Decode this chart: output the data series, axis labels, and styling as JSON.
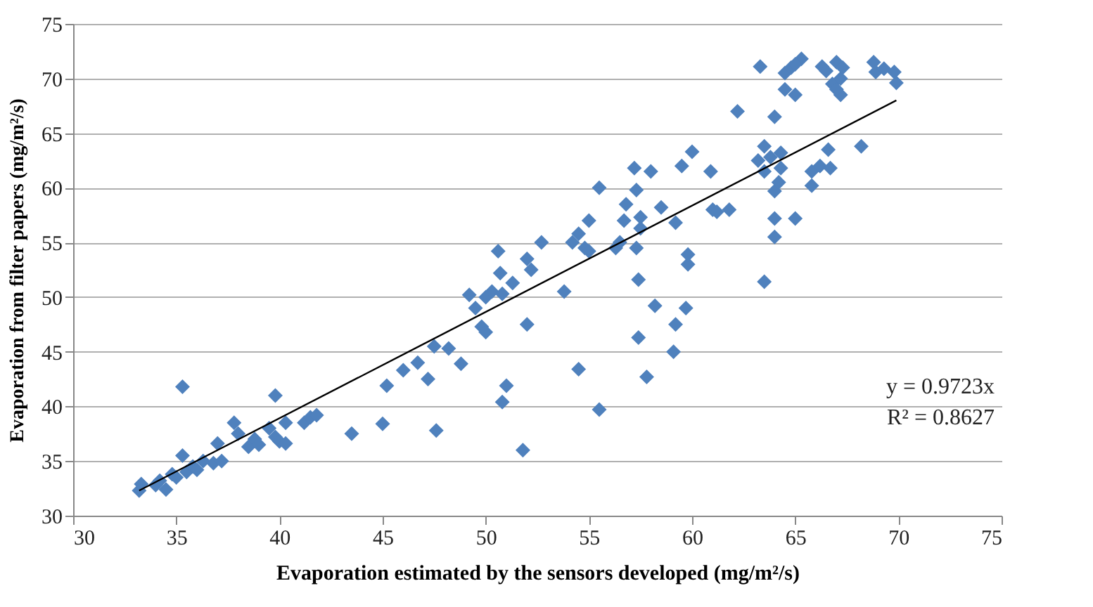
{
  "chart_data": {
    "type": "scatter",
    "xlabel": "Evaporation estimated by the sensors developed (mg/m²/s)",
    "ylabel": "Evaporation from filter papers (mg/m²/s)",
    "xlim": [
      30,
      75
    ],
    "xticks": [
      30,
      35,
      40,
      45,
      50,
      55,
      60,
      65,
      70,
      75
    ],
    "ylim": [
      30,
      75
    ],
    "yticks": [
      30,
      35,
      40,
      45,
      50,
      55,
      60,
      65,
      70,
      75
    ],
    "grid": "y",
    "annotations": [
      "y = 0.9723x",
      "R² = 0.8627"
    ],
    "series": [
      {
        "color": "#4f81bd",
        "marker": "diamond",
        "x": [
          33.2,
          33.3,
          34.0,
          34.2,
          34.5,
          34.8,
          35.0,
          35.3,
          35.3,
          35.5,
          35.8,
          36.0,
          36.3,
          36.8,
          37.0,
          37.2,
          37.8,
          38.0,
          38.5,
          38.8,
          39.0,
          39.5,
          39.8,
          39.8,
          40.0,
          40.3,
          40.3,
          41.2,
          41.5,
          41.8,
          43.5,
          45.0,
          45.2,
          46.0,
          46.7,
          47.2,
          47.5,
          47.6,
          48.2,
          48.8,
          49.2,
          49.5,
          49.8,
          50.0,
          50.0,
          50.3,
          50.6,
          50.7,
          50.8,
          51.0,
          50.8,
          51.3,
          52.0,
          51.8,
          52.0,
          52.2,
          52.7,
          53.8,
          54.2,
          54.5,
          54.5,
          54.8,
          55.0,
          55.0,
          55.5,
          55.5,
          56.3,
          56.5,
          56.7,
          56.8,
          57.2,
          57.3,
          57.3,
          57.4,
          57.4,
          57.5,
          57.5,
          57.8,
          58.0,
          58.2,
          58.5,
          59.1,
          59.2,
          59.2,
          59.5,
          59.7,
          59.8,
          59.8,
          60.0,
          60.9,
          61.0,
          61.2,
          61.8,
          62.2,
          63.2,
          63.3,
          63.5,
          63.5,
          63.5,
          63.8,
          64.0,
          64.0,
          64.0,
          64.0,
          64.2,
          64.3,
          64.3,
          64.5,
          64.5,
          64.8,
          65.0,
          65.0,
          65.3,
          65.0,
          65.8,
          65.8,
          66.2,
          66.3,
          66.5,
          66.6,
          66.7,
          66.8,
          67.0,
          67.2,
          67.2,
          67.3,
          68.2,
          68.8,
          68.9,
          69.3,
          69.8,
          69.9,
          67.0
        ],
        "values": [
          32.3,
          32.9,
          32.8,
          33.2,
          32.4,
          33.8,
          33.5,
          35.5,
          41.8,
          34.0,
          34.5,
          34.2,
          35.0,
          34.8,
          36.6,
          35.0,
          38.5,
          37.5,
          36.3,
          37.0,
          36.5,
          38.0,
          41.0,
          37.2,
          36.8,
          38.5,
          36.6,
          38.5,
          39.0,
          39.2,
          37.5,
          38.4,
          41.9,
          43.3,
          44.0,
          42.5,
          45.5,
          37.8,
          45.3,
          43.9,
          50.2,
          49.0,
          47.3,
          46.8,
          50.0,
          50.5,
          54.2,
          52.2,
          50.3,
          41.9,
          40.4,
          51.3,
          47.5,
          36.0,
          53.5,
          52.5,
          55.0,
          50.5,
          55.0,
          55.8,
          43.4,
          54.5,
          57.0,
          54.2,
          39.7,
          60.0,
          54.5,
          55.0,
          57.0,
          58.5,
          61.8,
          59.8,
          54.5,
          51.6,
          46.3,
          57.3,
          56.3,
          42.7,
          61.5,
          49.2,
          58.2,
          45.0,
          47.5,
          56.8,
          62.0,
          49.0,
          53.0,
          53.9,
          63.3,
          61.5,
          58.0,
          57.8,
          58.0,
          67.0,
          62.5,
          71.1,
          61.5,
          63.8,
          51.4,
          62.8,
          57.2,
          59.7,
          55.5,
          66.5,
          60.5,
          61.8,
          63.2,
          69.0,
          70.5,
          71.0,
          68.5,
          57.2,
          71.8,
          71.3,
          61.5,
          60.2,
          62.0,
          71.1,
          70.7,
          63.5,
          61.8,
          69.5,
          71.5,
          70.0,
          68.5,
          71.0,
          63.8,
          71.5,
          70.6,
          70.9,
          70.6,
          69.6,
          69.0
        ]
      },
      {
        "type": "line",
        "color": "#000000",
        "line_style": "solid",
        "x": [
          33.2,
          69.9
        ],
        "values": [
          32.3,
          68.0
        ]
      }
    ]
  }
}
